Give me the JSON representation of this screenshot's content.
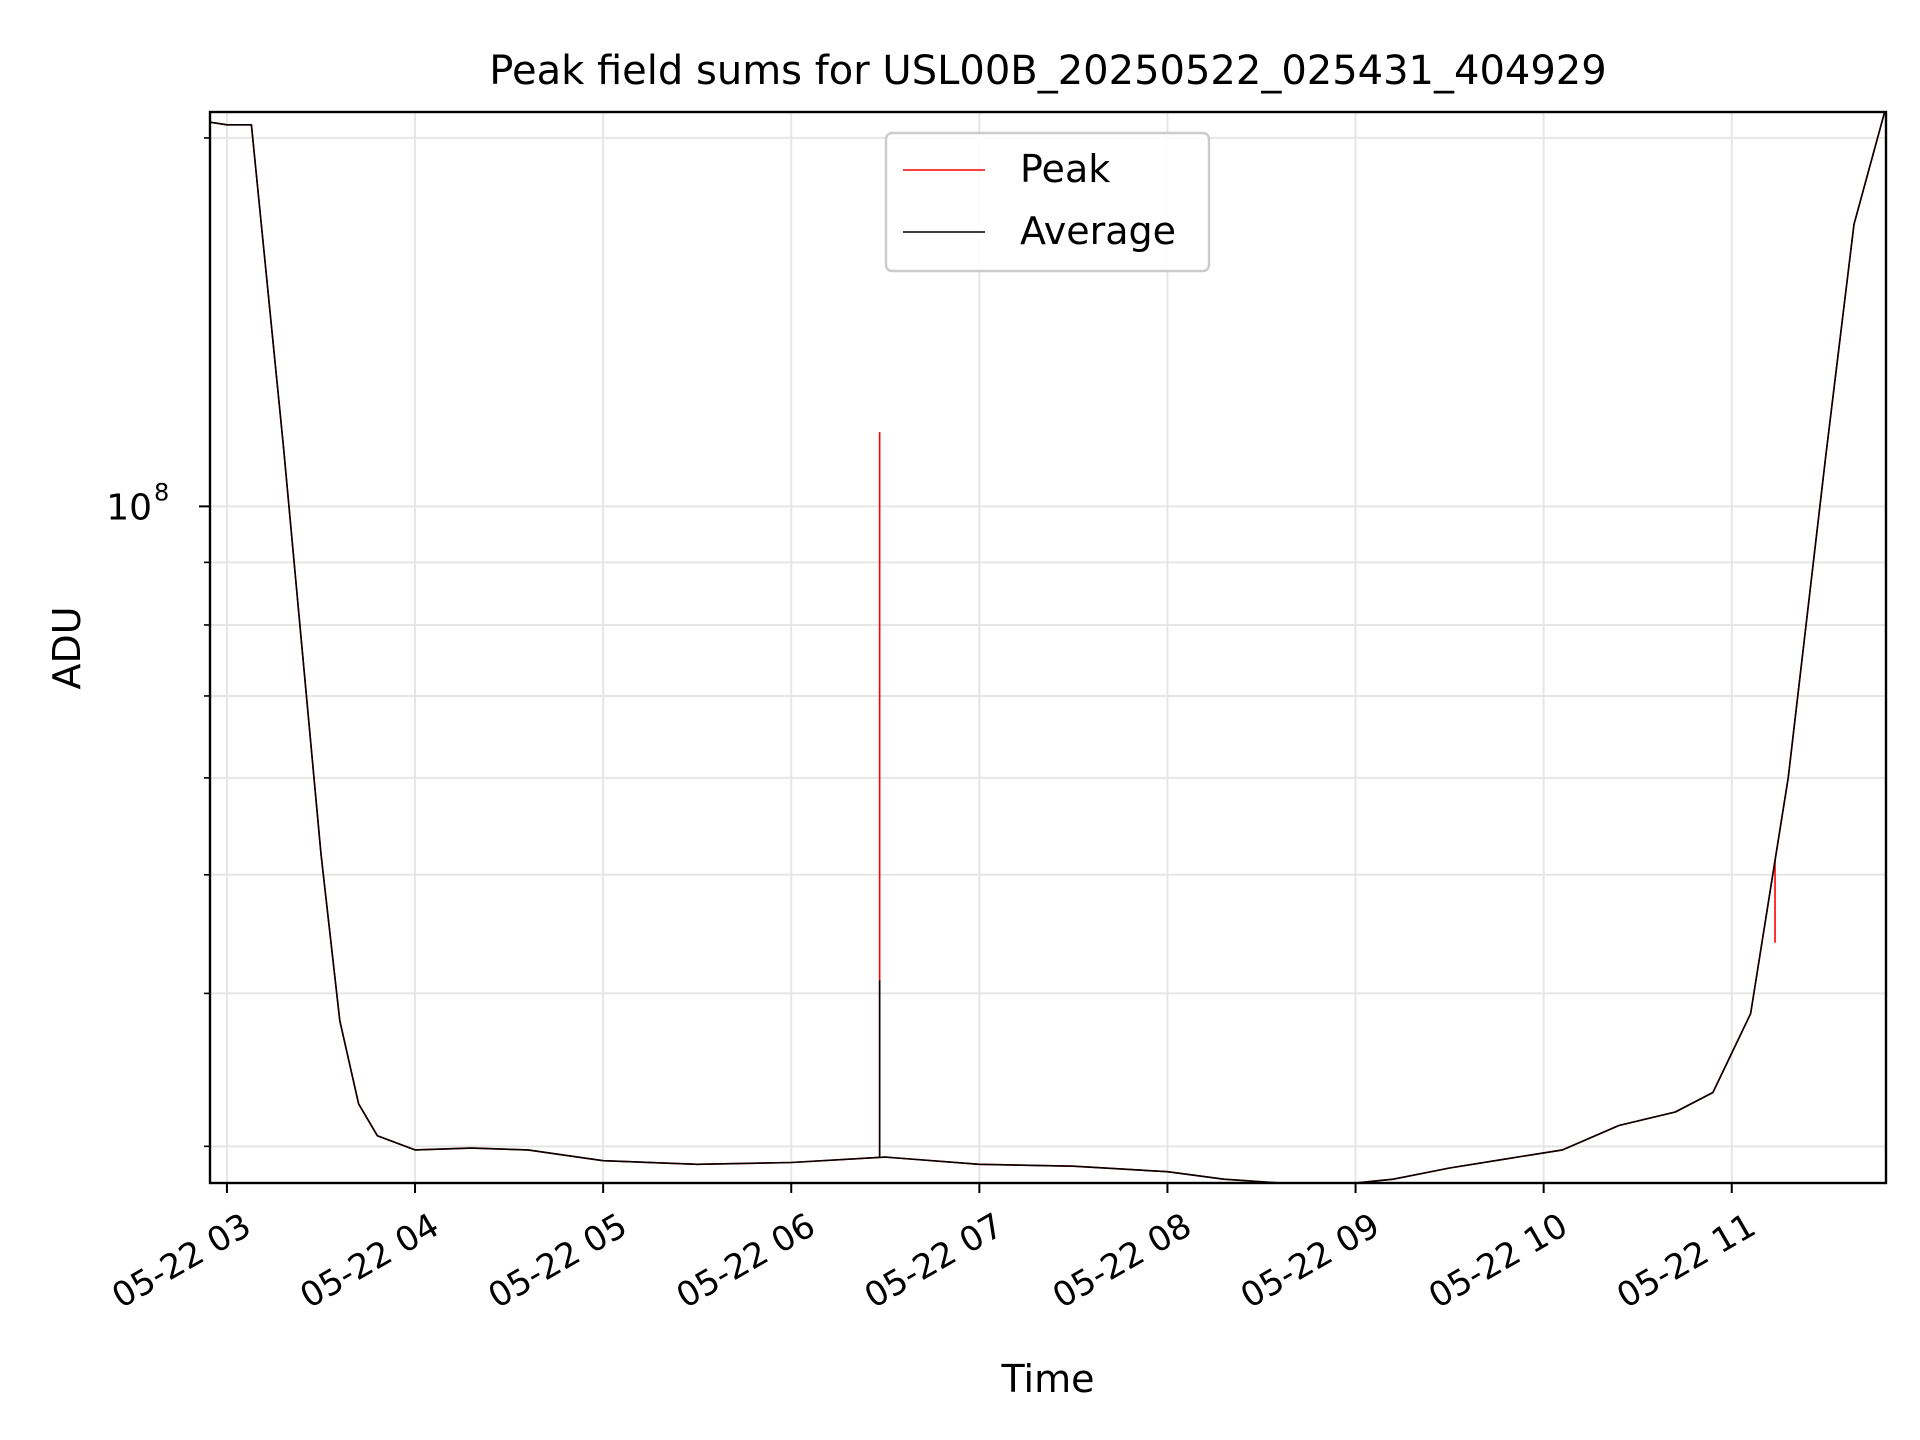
{
  "chart_data": {
    "type": "line",
    "title": "Peak field sums for USL00B_20250522_025431_404929",
    "xlabel": "Time",
    "ylabel": "ADU",
    "yscale": "log",
    "xlim_hours": [
      2.91,
      11.82
    ],
    "ylim": [
      28000000,
      210000000
    ],
    "x_tick_labels": [
      "05-22 03",
      "05-22 04",
      "05-22 05",
      "05-22 06",
      "05-22 07",
      "05-22 08",
      "05-22 09",
      "05-22 10",
      "05-22 11"
    ],
    "x_tick_hours": [
      3,
      4,
      5,
      6,
      7,
      8,
      9,
      10,
      11
    ],
    "y_major_tick": {
      "value": 100000000,
      "base": "10",
      "exponent": "8"
    },
    "y_minor_ticks": [
      30000000,
      40000000,
      50000000,
      60000000,
      70000000,
      80000000,
      90000000,
      200000000
    ],
    "grid": true,
    "legend": {
      "position": "top-center",
      "entries": [
        "Peak",
        "Average"
      ]
    },
    "series": [
      {
        "name": "Peak",
        "color": "#ff0000",
        "x_hours": [
          2.91,
          3.0,
          3.13,
          3.3,
          3.5,
          3.6,
          3.7,
          3.8,
          4.0,
          4.3,
          4.6,
          5.0,
          5.5,
          6.0,
          6.5,
          7.0,
          7.5,
          8.0,
          8.3,
          8.6,
          8.9,
          9.2,
          9.5,
          9.8,
          10.1,
          10.4,
          10.7,
          10.9,
          11.1,
          11.3,
          11.5,
          11.65,
          11.82
        ],
        "values": [
          206000000,
          205000000,
          205000000,
          112000000,
          52000000,
          38000000,
          32500000,
          30600000,
          29800000,
          29900000,
          29800000,
          29200000,
          29000000,
          29100000,
          29400000,
          29000000,
          28900000,
          28600000,
          28200000,
          28000000,
          27900000,
          28200000,
          28800000,
          29300000,
          29800000,
          31200000,
          32000000,
          33200000,
          38500000,
          60000000,
          110000000,
          170000000,
          212000000
        ],
        "spikes": [
          {
            "x_hour": 6.47,
            "value": 115000000
          },
          {
            "x_hour": 11.23,
            "value": 44000000
          }
        ]
      },
      {
        "name": "Average",
        "color": "#000000",
        "x_hours": [
          2.91,
          3.0,
          3.13,
          3.3,
          3.5,
          3.6,
          3.7,
          3.8,
          4.0,
          4.3,
          4.6,
          5.0,
          5.5,
          6.0,
          6.5,
          7.0,
          7.5,
          8.0,
          8.3,
          8.6,
          8.9,
          9.2,
          9.5,
          9.8,
          10.1,
          10.4,
          10.7,
          10.9,
          11.1,
          11.3,
          11.5,
          11.65,
          11.82
        ],
        "values": [
          206000000,
          205000000,
          205000000,
          112000000,
          52000000,
          38000000,
          32500000,
          30600000,
          29800000,
          29900000,
          29800000,
          29200000,
          29000000,
          29100000,
          29400000,
          29000000,
          28900000,
          28600000,
          28200000,
          28000000,
          27900000,
          28200000,
          28800000,
          29300000,
          29800000,
          31200000,
          32000000,
          33200000,
          38500000,
          60000000,
          110000000,
          170000000,
          212000000
        ],
        "spikes": [
          {
            "x_hour": 6.47,
            "value": 41000000
          }
        ]
      }
    ]
  }
}
